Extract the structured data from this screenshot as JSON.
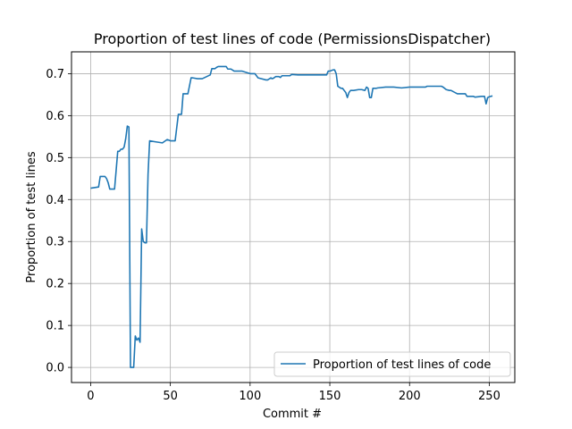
{
  "chart_data": {
    "type": "line",
    "title": "Proportion of test lines of code (PermissionsDispatcher)",
    "xlabel": "Commit #",
    "ylabel": "Proportion of test lines",
    "xlim": [
      -12,
      266
    ],
    "ylim": [
      -0.036,
      0.752
    ],
    "xticks": [
      0,
      50,
      100,
      150,
      200,
      250
    ],
    "yticks": [
      0.0,
      0.1,
      0.2,
      0.3,
      0.4,
      0.5,
      0.6,
      0.7
    ],
    "ytick_labels": [
      "0.0",
      "0.1",
      "0.2",
      "0.3",
      "0.4",
      "0.5",
      "0.6",
      "0.7"
    ],
    "grid": true,
    "legend_position": "lower-right",
    "colors": {
      "series": "#1f77b4"
    },
    "series": [
      {
        "name": "Proportion of test lines of code",
        "x": [
          0,
          5,
          6,
          9,
          10,
          11,
          12,
          13,
          15,
          16,
          17,
          18,
          19,
          20,
          21,
          22,
          23,
          24,
          25,
          26,
          27,
          28,
          29,
          30,
          31,
          32,
          33,
          34,
          35,
          36,
          37,
          40,
          45,
          48,
          50,
          53,
          55,
          57,
          58,
          60,
          61,
          63,
          64,
          67,
          68,
          70,
          75,
          76,
          78,
          79,
          80,
          85,
          86,
          88,
          90,
          95,
          100,
          101,
          103,
          105,
          110,
          111,
          113,
          114,
          115,
          116,
          118,
          119,
          120,
          125,
          126,
          130,
          135,
          140,
          145,
          148,
          149,
          150,
          152,
          153,
          154,
          155,
          157,
          158,
          160,
          161,
          162,
          163,
          165,
          168,
          170,
          172,
          173,
          174,
          175,
          176,
          177,
          178,
          179,
          180,
          185,
          186,
          190,
          195,
          200,
          205,
          210,
          211,
          215,
          220,
          221,
          223,
          225,
          226,
          230,
          235,
          236,
          240,
          241,
          245,
          246,
          247,
          248,
          249,
          250,
          252
        ],
        "y": [
          0.427,
          0.43,
          0.455,
          0.455,
          0.45,
          0.44,
          0.425,
          0.425,
          0.425,
          0.47,
          0.515,
          0.515,
          0.52,
          0.52,
          0.525,
          0.545,
          0.575,
          0.573,
          0.0,
          0.0,
          0.0,
          0.075,
          0.065,
          0.07,
          0.06,
          0.33,
          0.3,
          0.297,
          0.297,
          0.46,
          0.54,
          0.538,
          0.535,
          0.543,
          0.54,
          0.54,
          0.603,
          0.603,
          0.652,
          0.652,
          0.652,
          0.69,
          0.69,
          0.688,
          0.688,
          0.688,
          0.697,
          0.712,
          0.712,
          0.715,
          0.717,
          0.717,
          0.711,
          0.711,
          0.706,
          0.706,
          0.7,
          0.7,
          0.7,
          0.69,
          0.685,
          0.685,
          0.69,
          0.688,
          0.69,
          0.693,
          0.693,
          0.691,
          0.695,
          0.695,
          0.698,
          0.697,
          0.697,
          0.697,
          0.697,
          0.697,
          0.706,
          0.706,
          0.709,
          0.709,
          0.7,
          0.67,
          0.665,
          0.665,
          0.655,
          0.643,
          0.655,
          0.66,
          0.66,
          0.662,
          0.662,
          0.66,
          0.668,
          0.665,
          0.643,
          0.643,
          0.665,
          0.665,
          0.665,
          0.666,
          0.668,
          0.668,
          0.668,
          0.666,
          0.668,
          0.668,
          0.668,
          0.67,
          0.67,
          0.67,
          0.668,
          0.662,
          0.66,
          0.66,
          0.652,
          0.652,
          0.646,
          0.646,
          0.644,
          0.646,
          0.646,
          0.646,
          0.628,
          0.643,
          0.645,
          0.647
        ]
      }
    ]
  }
}
